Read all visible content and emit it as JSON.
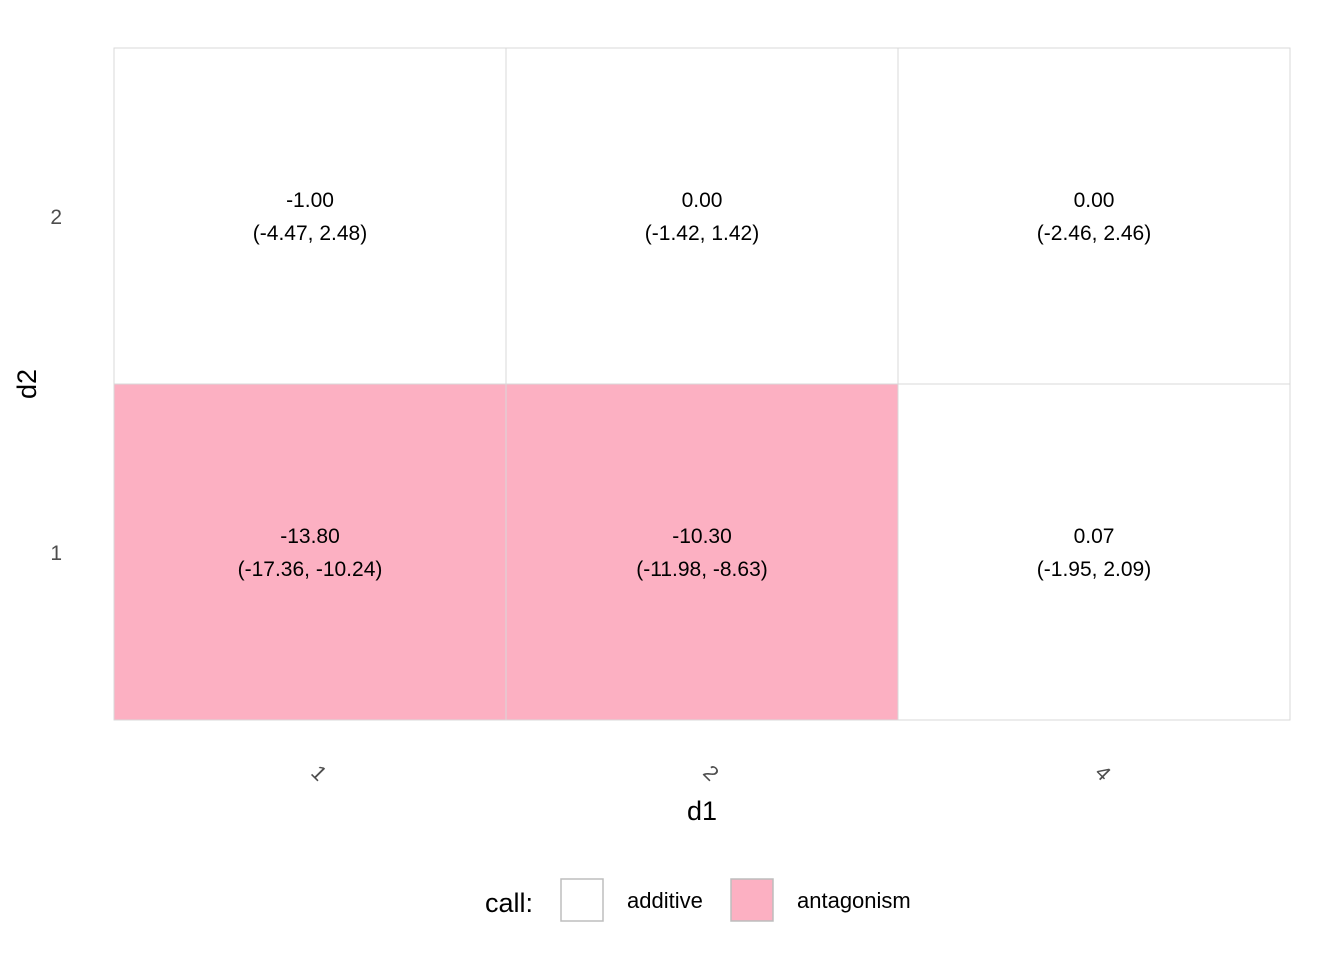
{
  "chart_data": {
    "type": "heatmap",
    "title": "",
    "xlabel": "d1",
    "ylabel": "d2",
    "x_categories": [
      "1",
      "2",
      "4"
    ],
    "y_categories": [
      "1",
      "2"
    ],
    "cells": [
      {
        "d1": "1",
        "d2": "2",
        "value": "-1.00",
        "ci": "(-4.47, 2.48)",
        "call": "additive"
      },
      {
        "d1": "2",
        "d2": "2",
        "value": "0.00",
        "ci": "(-1.42, 1.42)",
        "call": "additive"
      },
      {
        "d1": "4",
        "d2": "2",
        "value": "0.00",
        "ci": "(-2.46, 2.46)",
        "call": "additive"
      },
      {
        "d1": "1",
        "d2": "1",
        "value": "-13.80",
        "ci": "(-17.36, -10.24)",
        "call": "antagonism"
      },
      {
        "d1": "2",
        "d2": "1",
        "value": "-10.30",
        "ci": "(-11.98, -8.63)",
        "call": "antagonism"
      },
      {
        "d1": "4",
        "d2": "1",
        "value": "0.07",
        "ci": "(-1.95, 2.09)",
        "call": "additive"
      }
    ],
    "legend": {
      "title": "call:",
      "placement": "bottom",
      "entries": [
        {
          "label": "additive",
          "color": "#ffffff"
        },
        {
          "label": "antagonism",
          "color": "#fcb0c2"
        }
      ]
    },
    "grid": false,
    "cell_border_color": "#d9d9d9"
  }
}
